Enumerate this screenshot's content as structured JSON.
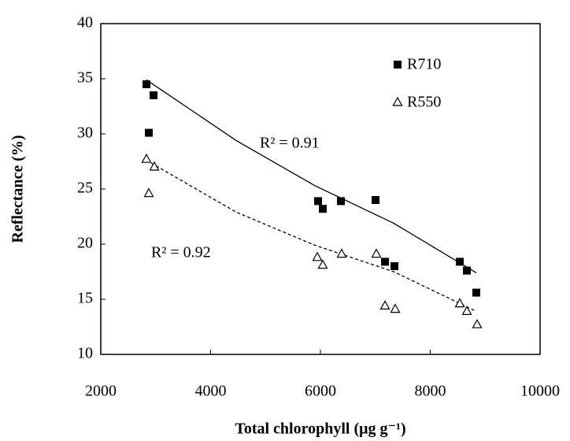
{
  "chart_data": {
    "type": "scatter",
    "x_label": "Total chlorophyll (μg g⁻¹)",
    "y_label": "Reflectance (%)",
    "xlim": [
      2000,
      10000
    ],
    "xticks": [
      2000,
      4000,
      6000,
      8000,
      10000
    ],
    "ylim": [
      10,
      40
    ],
    "yticks": [
      10,
      15,
      20,
      25,
      30,
      35,
      40
    ],
    "legend": "upper right",
    "series": [
      {
        "name": "R710",
        "color": "#000000",
        "marker": "square",
        "x": [
          2832,
          2961,
          2875,
          5957,
          6043,
          6373,
          7004,
          7176,
          7348,
          8538,
          8667,
          8839
        ],
        "values": [
          34.5,
          33.5,
          30.1,
          23.9,
          23.2,
          23.9,
          24.0,
          18.4,
          18.0,
          18.4,
          17.6,
          15.6
        ],
        "trend": {
          "x": [
            2832,
            4466,
            5900,
            7333,
            8839
          ],
          "values": [
            34.9,
            29.4,
            25.3,
            21.9,
            17.4
          ],
          "style": "solid"
        },
        "annotation": "R² = 0.91"
      },
      {
        "name": "R550",
        "color": "#000000",
        "marker": "triangle",
        "x": [
          2832,
          2975,
          2875,
          5943,
          6043,
          6387,
          7018,
          7176,
          7362,
          8538,
          8667,
          8853
        ],
        "values": [
          27.7,
          27.0,
          24.6,
          18.8,
          18.1,
          19.1,
          19.1,
          14.4,
          14.1,
          14.6,
          13.9,
          12.7
        ],
        "trend": {
          "x": [
            2832,
            4466,
            5900,
            7333,
            8839
          ],
          "values": [
            27.6,
            22.9,
            19.9,
            17.5,
            13.9
          ],
          "style": "dashed"
        },
        "annotation": "R² = 0.92"
      }
    ]
  }
}
